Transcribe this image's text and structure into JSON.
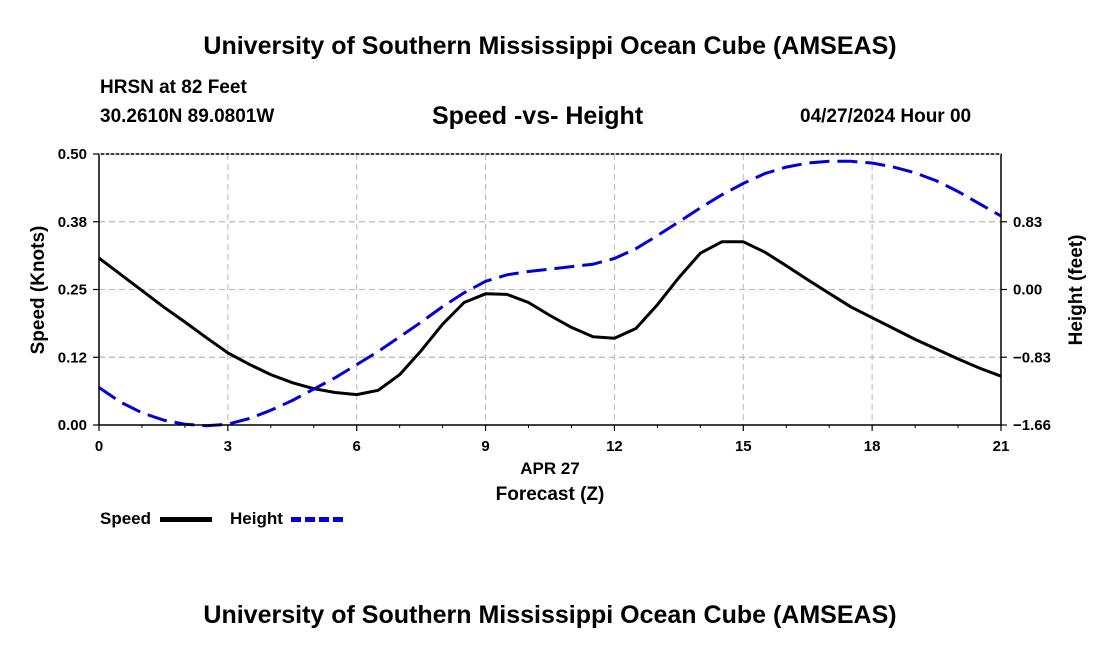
{
  "page": {
    "title": "University of Southern Mississippi Ocean Cube (AMSEAS)",
    "footer_title": "University of Southern Mississippi Ocean Cube (AMSEAS)",
    "station": "HRSN at 82 Feet",
    "coordinates": "30.2610N  89.0801W",
    "datetime": "04/27/2024 Hour 00"
  },
  "legend": {
    "speed_label": "Speed",
    "height_label": "Height"
  },
  "chart_data": {
    "type": "line",
    "title": "Speed -vs- Height",
    "xlabel": "Forecast (Z)",
    "x_sublabel": "APR 27",
    "x": [
      0,
      0.5,
      1,
      1.5,
      2,
      2.5,
      3,
      3.5,
      4,
      4.5,
      5,
      5.5,
      6,
      6.5,
      7,
      7.5,
      8,
      8.5,
      9,
      9.5,
      10,
      10.5,
      11,
      11.5,
      12,
      12.5,
      13,
      13.5,
      14,
      14.5,
      15,
      15.5,
      16,
      16.5,
      17,
      17.5,
      18,
      18.5,
      19,
      19.5,
      20,
      20.5,
      21
    ],
    "xlim": [
      0,
      21
    ],
    "xticks": [
      0,
      3,
      6,
      9,
      12,
      15,
      18,
      21
    ],
    "series": [
      {
        "name": "Speed",
        "axis": "left",
        "color": "#000000",
        "style": "solid",
        "values": [
          0.308,
          0.278,
          0.248,
          0.218,
          0.19,
          0.161,
          0.133,
          0.112,
          0.093,
          0.078,
          0.067,
          0.06,
          0.056,
          0.064,
          0.093,
          0.137,
          0.186,
          0.226,
          0.242,
          0.241,
          0.226,
          0.202,
          0.18,
          0.163,
          0.16,
          0.178,
          0.222,
          0.272,
          0.317,
          0.338,
          0.338,
          0.319,
          0.294,
          0.268,
          0.243,
          0.218,
          0.198,
          0.178,
          0.158,
          0.14,
          0.122,
          0.105,
          0.09
        ]
      },
      {
        "name": "Height",
        "axis": "right",
        "color": "#0000dd",
        "style": "dashed",
        "values": [
          -1.2,
          -1.38,
          -1.51,
          -1.6,
          -1.65,
          -1.67,
          -1.65,
          -1.58,
          -1.48,
          -1.36,
          -1.22,
          -1.08,
          -0.92,
          -0.76,
          -0.58,
          -0.4,
          -0.21,
          -0.04,
          0.1,
          0.18,
          0.22,
          0.25,
          0.28,
          0.31,
          0.38,
          0.5,
          0.66,
          0.83,
          1.0,
          1.16,
          1.3,
          1.42,
          1.5,
          1.55,
          1.57,
          1.57,
          1.55,
          1.5,
          1.43,
          1.33,
          1.2,
          1.05,
          0.9
        ]
      }
    ],
    "y_left": {
      "label": "Speed (Knots)",
      "lim": [
        0,
        0.5
      ],
      "ticks": [
        0.0,
        0.125,
        0.25,
        0.375,
        0.5
      ],
      "tick_labels": [
        "0.00",
        "0.12",
        "0.25",
        "0.38",
        "0.50"
      ]
    },
    "y_right": {
      "label": "Height (feet)",
      "lim": [
        -1.66,
        1.66
      ],
      "ticks": [
        -1.66,
        -0.83,
        0.0,
        0.83
      ],
      "tick_labels": [
        "−1.66",
        "−0.83",
        "0.00",
        "0.83"
      ]
    },
    "grid": true
  }
}
